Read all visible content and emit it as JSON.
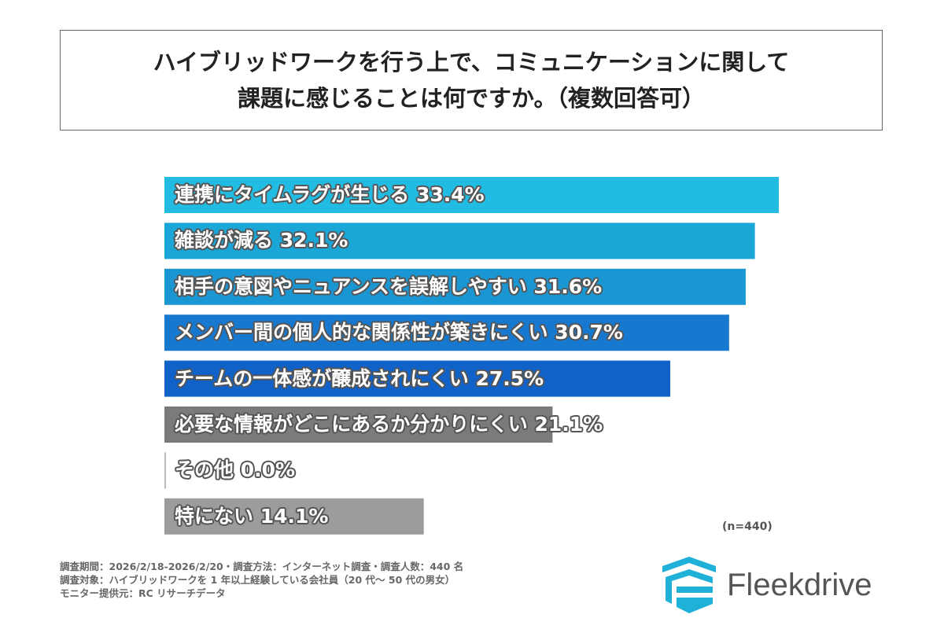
{
  "title": [
    "ハイブリッドワークを行う上で、コミュニケーションに関して",
    "課題に感じることは何ですか。（複数回答可）"
  ],
  "chart_data": {
    "type": "bar",
    "orientation": "horizontal",
    "unit": "%",
    "xlim": [
      0,
      33.4
    ],
    "grid": false,
    "categories": [
      "連携にタイムラグが生じる",
      "雑談が減る",
      "相手の意図やニュアンスを誤解しやすい",
      "メンバー間の個人的な関係性が築きにくい",
      "チームの一体感が醸成されにくい",
      "必要な情報がどこにあるか分かりにくい",
      "その他",
      "特にない"
    ],
    "values": [
      33.4,
      32.1,
      31.6,
      30.7,
      27.5,
      21.1,
      0.0,
      14.1
    ],
    "labels": [
      "連携にタイムラグが生じる  33.4%",
      "雑談が減る  32.1%",
      "相手の意図やニュアンスを誤解しやすい  31.6%",
      "メンバー間の個人的な関係性が築きにくい  30.7%",
      "チームの一体感が醸成されにくい  27.5%",
      "必要な情報がどこにあるか分かりにくい  21.1%",
      "その他  0.0%",
      "特にない  14.1%"
    ],
    "colors": [
      "#22bce2",
      "#1ba6d8",
      "#1a96d2",
      "#1778cf",
      "#1062c9",
      "#7b7b7b",
      "#9a9a9a",
      "#9c9c9c"
    ]
  },
  "sample_size": "(n=440)",
  "notes": [
    "調査期間：2026/2/18-2026/2/20・調査方法：インターネット調査・調査人数：440 名",
    "調査対象：ハイブリッドワークを 1 年以上経験している会社員（20 代〜 50 代の男女）",
    "モニター提供元：RC リサーチデータ"
  ],
  "logo": {
    "text": "Fleekdrive",
    "color": "#1fb1d8"
  }
}
